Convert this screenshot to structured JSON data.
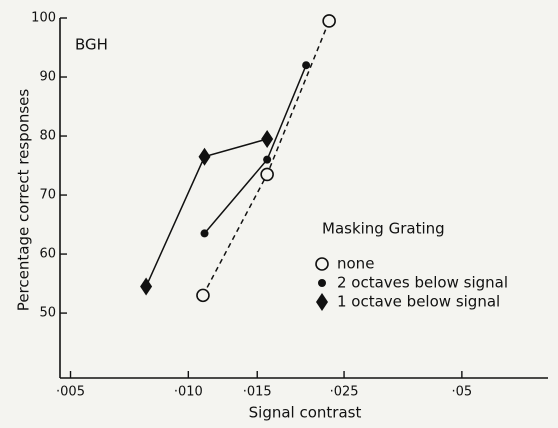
{
  "chart_data": {
    "type": "line",
    "annotation": "BGH",
    "x_label": "Signal contrast",
    "y_label": "Percentage correct responses",
    "legend_title": "Masking Grating",
    "xscale": "log",
    "xlim": [
      0.0047,
      0.083
    ],
    "xticks": [
      {
        "value": 0.005,
        "label": "·005"
      },
      {
        "value": 0.01,
        "label": "·010"
      },
      {
        "value": 0.015,
        "label": "·015"
      },
      {
        "value": 0.025,
        "label": "·025"
      },
      {
        "value": 0.05,
        "label": "·05"
      }
    ],
    "ylim": [
      39,
      100
    ],
    "yticks": [
      50,
      60,
      70,
      80,
      90,
      100
    ],
    "series": [
      {
        "name": "none",
        "color": "#111111",
        "marker": "circle-open",
        "dash": true,
        "x": [
          0.0109,
          0.0159,
          0.0229
        ],
        "values": [
          53,
          73.5,
          99.5
        ]
      },
      {
        "name": "2 octaves below signal",
        "color": "#111111",
        "marker": "dot",
        "dash": false,
        "x": [
          0.011,
          0.0159,
          0.02
        ],
        "values": [
          63.5,
          76,
          92
        ]
      },
      {
        "name": "1 octave below signal",
        "color": "#111111",
        "marker": "diamond",
        "dash": false,
        "x": [
          0.0078,
          0.011,
          0.0159
        ],
        "values": [
          54.5,
          76.5,
          79.5
        ]
      }
    ]
  }
}
